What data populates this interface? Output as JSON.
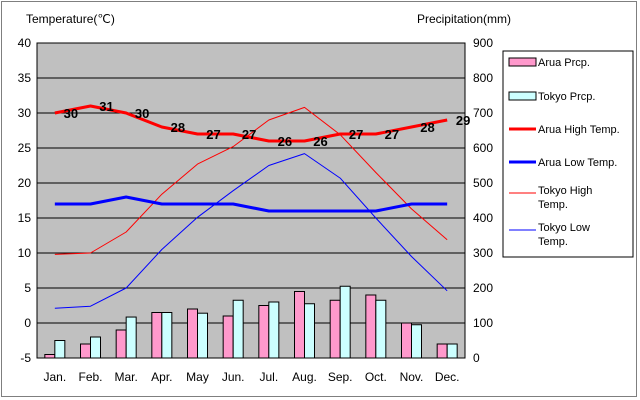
{
  "chart_data": {
    "type": "bar+line",
    "left_axis_title": "Temperature(℃)",
    "right_axis_title": "Precipitation(mm)",
    "categories": [
      "Jan.",
      "Feb.",
      "Mar.",
      "Apr.",
      "May",
      "Jun.",
      "Jul.",
      "Aug.",
      "Sep.",
      "Oct.",
      "Nov.",
      "Dec."
    ],
    "left_ylim": [
      -5,
      40
    ],
    "left_ticks": [
      -5,
      0,
      5,
      10,
      15,
      20,
      25,
      30,
      35,
      40
    ],
    "right_ylim": [
      0,
      900
    ],
    "right_ticks": [
      0,
      100,
      200,
      300,
      400,
      500,
      600,
      700,
      800,
      900
    ],
    "bar_series": [
      {
        "name": "Arua Prcp.",
        "color": "#ff99cc",
        "values": [
          10,
          40,
          80,
          130,
          140,
          120,
          150,
          190,
          165,
          180,
          100,
          40
        ]
      },
      {
        "name": "Tokyo Prcp.",
        "color": "#ccffff",
        "values": [
          50,
          60,
          117,
          130,
          128,
          165,
          160,
          155,
          205,
          165,
          95,
          40
        ]
      }
    ],
    "line_series": [
      {
        "name": "Arua High Temp.",
        "color": "#ff0000",
        "width": 3,
        "values": [
          30,
          31,
          30,
          28,
          27,
          27,
          26,
          26,
          27,
          27,
          28,
          29
        ],
        "labeled": true
      },
      {
        "name": "Arua Low Temp.",
        "color": "#0000ff",
        "width": 3,
        "values": [
          17,
          17,
          18,
          17,
          17,
          17,
          16,
          16,
          16,
          16,
          17,
          17
        ],
        "labeled": false
      },
      {
        "name": "Tokyo High Temp.",
        "color": "#ff0000",
        "width": 1,
        "values": [
          9.8,
          10,
          13,
          18.4,
          22.7,
          25.2,
          29,
          30.8,
          26.9,
          21.5,
          16.3,
          11.9
        ],
        "labeled": false
      },
      {
        "name": "Tokyo Low Temp.",
        "color": "#0000ff",
        "width": 1,
        "values": [
          2.1,
          2.4,
          5,
          10.5,
          15.1,
          18.9,
          22.5,
          24.2,
          20.7,
          15,
          9.5,
          4.6
        ],
        "labeled": false
      }
    ],
    "legend": [
      {
        "label": "Arua Prcp.",
        "kind": "bar",
        "color": "#ff99cc"
      },
      {
        "label": "Tokyo Prcp.",
        "kind": "bar",
        "color": "#ccffff"
      },
      {
        "label": "Arua High Temp.",
        "kind": "line",
        "color": "#ff0000",
        "width": 3
      },
      {
        "label": "Arua Low Temp.",
        "kind": "line",
        "color": "#0000ff",
        "width": 3
      },
      {
        "label": "Tokyo High Temp.",
        "kind": "line",
        "color": "#ff0000",
        "width": 1
      },
      {
        "label": "Tokyo Low Temp.",
        "kind": "line",
        "color": "#0000ff",
        "width": 1
      }
    ],
    "legend_position": "right",
    "plot_background": "#c0c0c0"
  }
}
